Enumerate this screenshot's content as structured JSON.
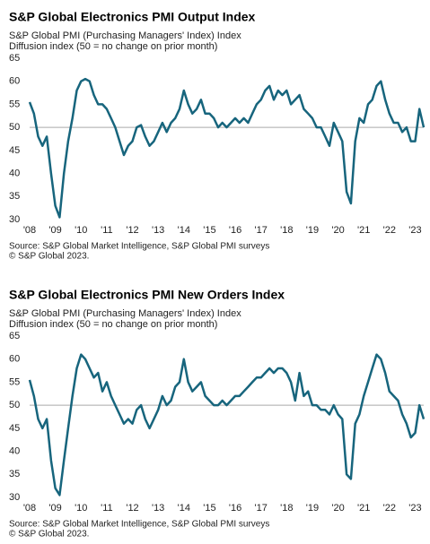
{
  "chart_data": [
    {
      "type": "line",
      "title": "S&P Global Electronics PMI Output Index",
      "subtitle": [
        "S&P Global  PMI (Purchasing Managers' Index) Index",
        "Diffusion index (50 = no change on prior month)"
      ],
      "source": [
        "Source: S&P Global Market Intelligence, S&P Global PMI surveys",
        "© S&P Global 2023."
      ],
      "categories": [
        "'08",
        null,
        null,
        null,
        null,
        null,
        "'09",
        null,
        null,
        null,
        null,
        null,
        "'10",
        null,
        null,
        null,
        null,
        null,
        "'11",
        null,
        null,
        null,
        null,
        null,
        "'12",
        null,
        null,
        null,
        null,
        null,
        "'13",
        null,
        null,
        null,
        null,
        null,
        "'14",
        null,
        null,
        null,
        null,
        null,
        "'15",
        null,
        null,
        null,
        null,
        null,
        "'16",
        null,
        null,
        null,
        null,
        null,
        "'17",
        null,
        null,
        null,
        null,
        null,
        "'18",
        null,
        null,
        null,
        null,
        null,
        "'19",
        null,
        null,
        null,
        null,
        null,
        "'20",
        null,
        null,
        null,
        null,
        null,
        "'21",
        null,
        null,
        null,
        null,
        null,
        "'22",
        null,
        null,
        null,
        null,
        null,
        "'23",
        null,
        null
      ],
      "series": [
        {
          "name": "Output Index",
          "color": "#17657d",
          "values": [
            55.5,
            53,
            48,
            46,
            48,
            40,
            33,
            30.5,
            40,
            47,
            52,
            58,
            60,
            60.5,
            60,
            57,
            55,
            55,
            54,
            52,
            50,
            47,
            44,
            46,
            47,
            50,
            50.5,
            48,
            46,
            47,
            49,
            51,
            49,
            51,
            52,
            54,
            58,
            55,
            53,
            54,
            56,
            53,
            53,
            52,
            50,
            51,
            50,
            51,
            52,
            51,
            52,
            51,
            53,
            55,
            56,
            58,
            59,
            56,
            58,
            57,
            58,
            55,
            56,
            57,
            54,
            53,
            52,
            50,
            50,
            48,
            46,
            51,
            49,
            47,
            36,
            33.5,
            47,
            52,
            51,
            55,
            56,
            59,
            60,
            56,
            53,
            51,
            51,
            49,
            50,
            47,
            47,
            54,
            50
          ]
        }
      ],
      "ylim": [
        30,
        65
      ],
      "yticks": [
        30,
        35,
        40,
        45,
        50,
        55,
        60,
        65
      ],
      "hline": 50
    },
    {
      "type": "line",
      "title": "S&P Global Electronics PMI New Orders Index",
      "subtitle": [
        "S&P Global  PMI (Purchasing Managers' Index) Index",
        "Diffusion index (50 = no change on prior month)"
      ],
      "source": [
        "Source: S&P Global Market Intelligence, S&P Global PMI surveys",
        "© S&P Global 2023."
      ],
      "categories": [
        "'08",
        null,
        null,
        null,
        null,
        null,
        "'09",
        null,
        null,
        null,
        null,
        null,
        "'10",
        null,
        null,
        null,
        null,
        null,
        "'11",
        null,
        null,
        null,
        null,
        null,
        "'12",
        null,
        null,
        null,
        null,
        null,
        "'13",
        null,
        null,
        null,
        null,
        null,
        "'14",
        null,
        null,
        null,
        null,
        null,
        "'15",
        null,
        null,
        null,
        null,
        null,
        "'16",
        null,
        null,
        null,
        null,
        null,
        "'17",
        null,
        null,
        null,
        null,
        null,
        "'18",
        null,
        null,
        null,
        null,
        null,
        "'19",
        null,
        null,
        null,
        null,
        null,
        "'20",
        null,
        null,
        null,
        null,
        null,
        "'21",
        null,
        null,
        null,
        null,
        null,
        "'22",
        null,
        null,
        null,
        null,
        null,
        "'23",
        null,
        null
      ],
      "series": [
        {
          "name": "New Orders Index",
          "color": "#17657d",
          "values": [
            55.5,
            52,
            47,
            45,
            47,
            38,
            32,
            30.5,
            38,
            45,
            52,
            58,
            61,
            60,
            58,
            56,
            57,
            53,
            55,
            52,
            50,
            48,
            46,
            47,
            46,
            49,
            50,
            47,
            45,
            47,
            49,
            52,
            50,
            51,
            54,
            55,
            60,
            55,
            53,
            54,
            55,
            52,
            51,
            50,
            50,
            51,
            50,
            51,
            52,
            52,
            53,
            54,
            55,
            56,
            56,
            57,
            58,
            57,
            58,
            58,
            57,
            55,
            51,
            57,
            52,
            53,
            50,
            50,
            49,
            49,
            48,
            50,
            48,
            47,
            35,
            34,
            46,
            48,
            52,
            55,
            58,
            61,
            60,
            57,
            53,
            52,
            51,
            48,
            46,
            43,
            44,
            50,
            47
          ]
        }
      ],
      "ylim": [
        30,
        65
      ],
      "yticks": [
        30,
        35,
        40,
        45,
        50,
        55,
        60,
        65
      ],
      "hline": 50
    }
  ]
}
